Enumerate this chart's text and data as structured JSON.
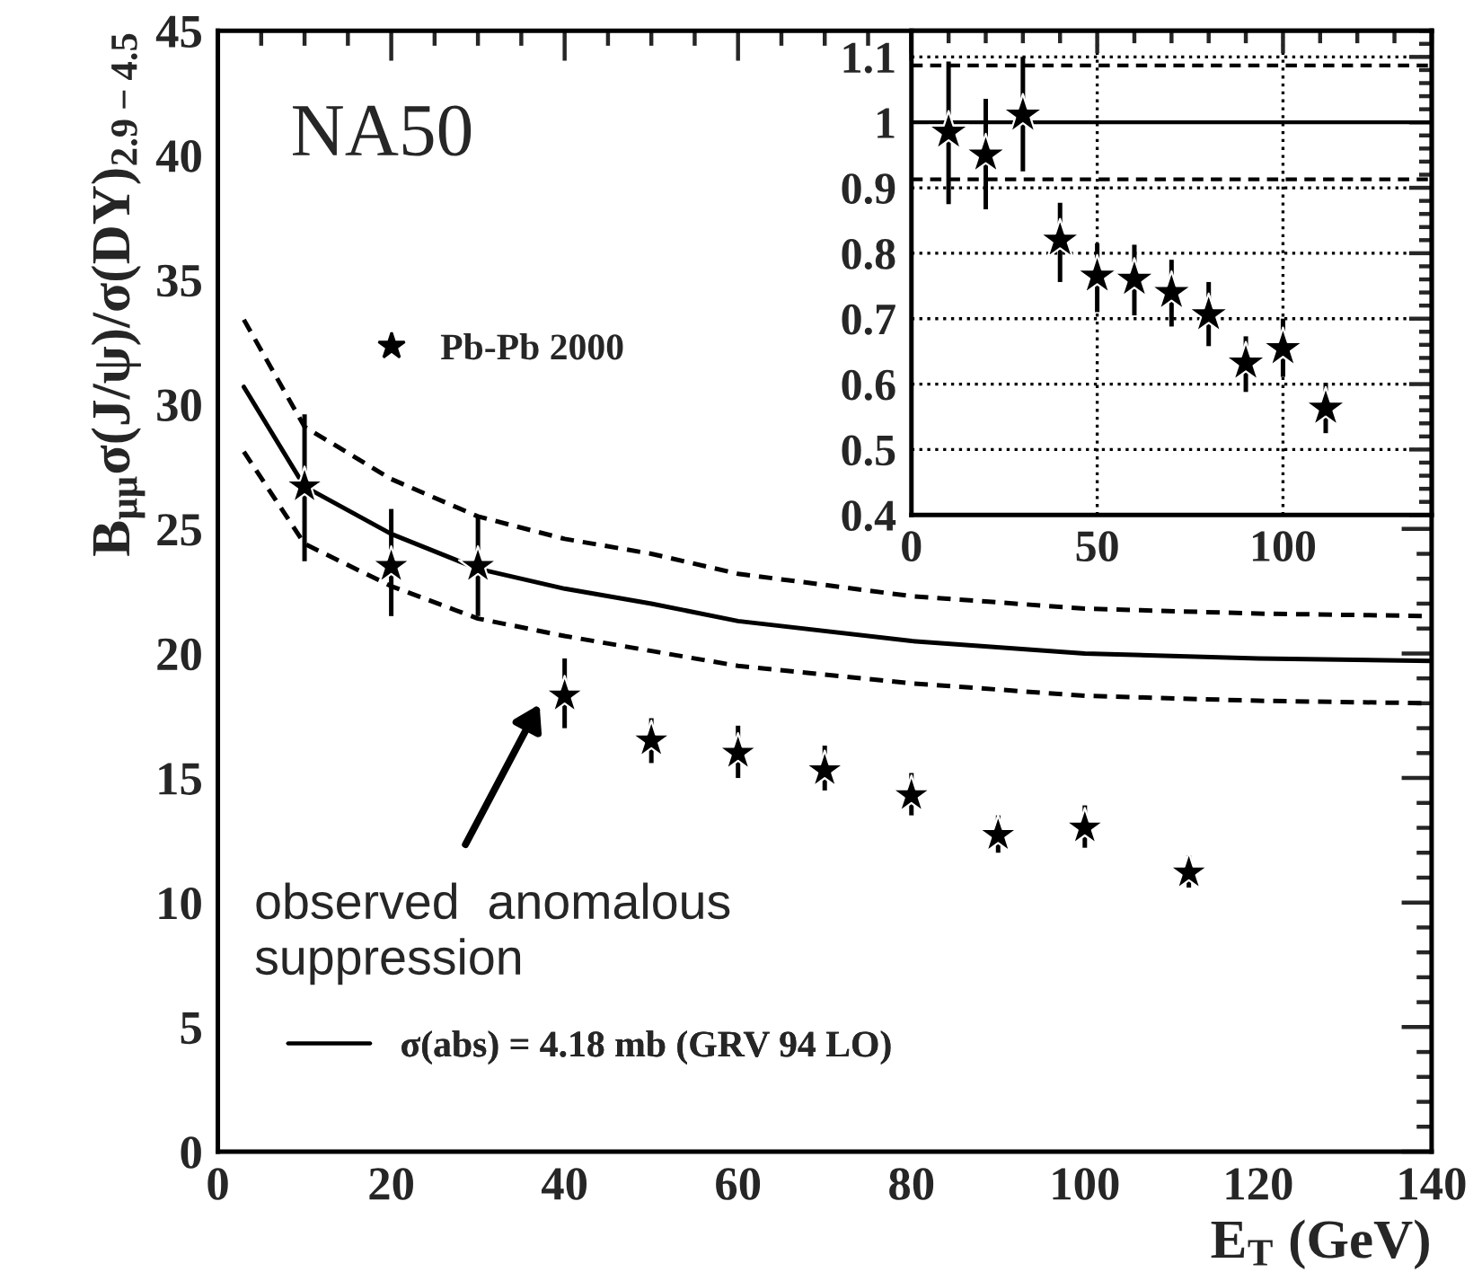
{
  "chart_data": [
    {
      "type": "scatter",
      "xlabel": "E$_{T}$ (GeV)",
      "ylabel": "B$_{μμ}$σ(J/ψ)/σ(DY)$_{2.9−4.5}$",
      "xlim": [
        0,
        140
      ],
      "ylim": [
        0,
        45
      ],
      "xticks": [
        0,
        20,
        40,
        60,
        80,
        100,
        120,
        140
      ],
      "yticks": [
        0,
        5,
        10,
        15,
        20,
        25,
        30,
        35,
        40,
        45
      ],
      "legend": "left",
      "annotations": [
        "NA50",
        "observed  anomalous\nsuppression"
      ],
      "series": [
        {
          "name": "Pb-Pb 2000",
          "marker": "star",
          "color": "#000000",
          "x": [
            10,
            20,
            30,
            40,
            50,
            60,
            70,
            80,
            90,
            100,
            112
          ],
          "values": [
            26.7,
            23.5,
            23.5,
            18.3,
            16.5,
            16.0,
            15.3,
            14.3,
            12.7,
            13.0,
            11.2
          ],
          "errors": [
            [
              23.7,
              29.6
            ],
            [
              21.5,
              25.8
            ],
            [
              21.5,
              25.5
            ],
            [
              17.0,
              19.8
            ],
            [
              15.6,
              17.4
            ],
            [
              15.0,
              17.1
            ],
            [
              14.5,
              16.3
            ],
            [
              13.5,
              15.2
            ],
            [
              12.0,
              13.5
            ],
            [
              12.2,
              13.9
            ],
            [
              10.6,
              11.9
            ]
          ]
        },
        {
          "name": "σ(abs) = 4.18 mb (GRV 94 LO)",
          "type": "line",
          "line_style": "solid",
          "color": "#000000",
          "x": [
            3,
            10,
            20,
            30,
            40,
            50,
            60,
            80,
            100,
            120,
            140
          ],
          "values": [
            30.7,
            26.7,
            24.8,
            23.4,
            22.6,
            22.0,
            21.3,
            20.5,
            20.0,
            19.8,
            19.7
          ]
        },
        {
          "type": "line",
          "line_style": "dashed",
          "color": "#000000",
          "x": [
            3,
            10,
            20,
            30,
            40,
            50,
            60,
            80,
            100,
            120,
            140
          ],
          "values": [
            33.4,
            29.1,
            27.0,
            25.5,
            24.6,
            24.0,
            23.2,
            22.3,
            21.8,
            21.6,
            21.5
          ]
        },
        {
          "type": "line",
          "line_style": "dashed",
          "color": "#000000",
          "x": [
            3,
            10,
            20,
            30,
            40,
            50,
            60,
            80,
            100,
            120,
            140
          ],
          "values": [
            28.1,
            24.4,
            22.7,
            21.4,
            20.7,
            20.1,
            19.5,
            18.8,
            18.3,
            18.1,
            18.0
          ]
        }
      ]
    },
    {
      "type": "scatter",
      "xlim": [
        0,
        140
      ],
      "ylim": [
        0.4,
        1.14
      ],
      "xticks": [
        0,
        50,
        100
      ],
      "yticks": [
        0.4,
        0.5,
        0.6,
        0.7,
        0.8,
        0.9,
        1,
        1.1
      ],
      "grid": true,
      "ref_lines": [
        {
          "axis": "y",
          "value": 1,
          "line_style": "solid",
          "color": "#000000"
        },
        {
          "axis": "y",
          "value": 1.087,
          "line_style": "dashed",
          "color": "#000000"
        },
        {
          "axis": "y",
          "value": 0.913,
          "line_style": "dashed",
          "color": "#000000"
        }
      ],
      "series": [
        {
          "marker": "star",
          "color": "#000000",
          "x": [
            10,
            20,
            30,
            40,
            50,
            60,
            70,
            80,
            90,
            100,
            111.5
          ],
          "values": [
            0.985,
            0.95,
            1.011,
            0.82,
            0.765,
            0.76,
            0.74,
            0.706,
            0.632,
            0.654,
            0.563
          ],
          "errors": [
            [
              0.875,
              1.093
            ],
            [
              0.867,
              1.036
            ],
            [
              0.925,
              1.1
            ],
            [
              0.756,
              0.877
            ],
            [
              0.71,
              0.815
            ],
            [
              0.705,
              0.813
            ],
            [
              0.688,
              0.79
            ],
            [
              0.658,
              0.756
            ],
            [
              0.588,
              0.673
            ],
            [
              0.611,
              0.7
            ],
            [
              0.525,
              0.602
            ]
          ]
        }
      ]
    }
  ]
}
